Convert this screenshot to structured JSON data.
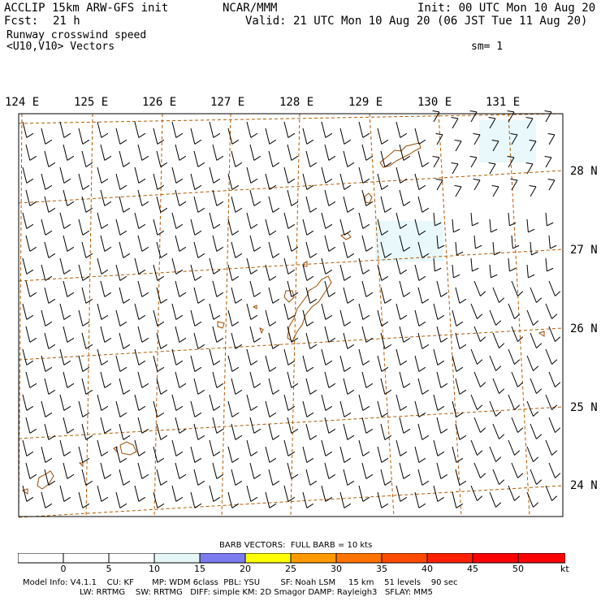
{
  "header": {
    "model": "ACCLIP 15km ARW-GFS init",
    "fcst_label": "Fcst:",
    "fcst_value": "21 h",
    "org": "NCAR/MMM",
    "init": "Init: 00 UTC Mon 10 Aug 20",
    "valid": "Valid: 21 UTC Mon 10 Aug 20 (06 JST Tue 11 Aug 20)",
    "title": "Runway crosswind speed",
    "subtitle": "<U10,V10> Vectors",
    "smoothing": "sm= 1"
  },
  "axes": {
    "longitude_labels": [
      "124 E",
      "125 E",
      "126 E",
      "127 E",
      "128 E",
      "129 E",
      "130 E",
      "131 E"
    ],
    "latitude_labels": [
      "28 N",
      "27 N",
      "26 N",
      "25 N",
      "24 N"
    ]
  },
  "colorbar": {
    "title": "BARB VECTORS:  FULL BARB = 10 kts",
    "ticks": [
      "0",
      "5",
      "10",
      "15",
      "20",
      "25",
      "30",
      "35",
      "40",
      "45",
      "50"
    ],
    "unit": "kt",
    "bin_colors": [
      "#ffffff",
      "#ffffff",
      "#ffffff",
      "#e4f7f7",
      "#7b7bef",
      "#ffff00",
      "#ff9b00",
      "#ff7300",
      "#ff4b00",
      "#ff2000",
      "#ff0000",
      "#ff0000"
    ]
  },
  "map_style": {
    "grid_color": "#b35a00",
    "coast_color": "#9a4a00",
    "shade_color": "#e8f8fb"
  },
  "footer": {
    "line1": "Model Info: V4.1.1    CU: KF       MP: WDM 6class  PBL: YSU        SF: Noah LSM     15 km    51 levels    90 sec",
    "line2": "LW: RRTMG    SW: RRTMG   DIFF: simple KM: 2D Smagor DAMP: Rayleigh3   SFLAY: MM5"
  }
}
